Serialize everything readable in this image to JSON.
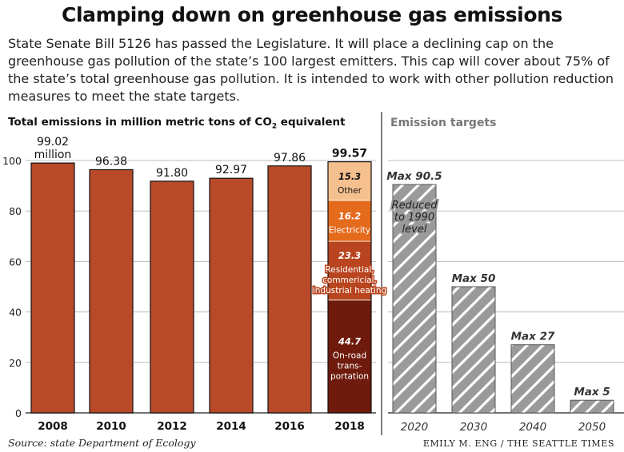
{
  "title": "Clamping down on greenhouse gas emissions",
  "intro": "State Senate Bill 5126 has passed the Legislature. It will place a declining cap on the greenhouse gas pollution of the state’s 100 largest emitters. This cap will cover about 75% of the state’s total greenhouse gas pollution. It is intended to work with other pollution reduction measures to meet the state targets.",
  "source": "Source: state Department of Ecology",
  "credit": "EMILY M. ENG / THE SEATTLE TIMES",
  "colors": {
    "bar": "#b84a2a",
    "other": "#f6c08e",
    "electricity": "#e46a1c",
    "heating": "#b8451f",
    "transportation": "#6e1a0c",
    "target": "#9a9a9a"
  },
  "chart_data": [
    {
      "type": "bar",
      "title": "Total emissions in million metric tons of CO",
      "title_subscript": "2",
      "title_suffix": " equivalent",
      "categories": [
        "2008",
        "2010",
        "2012",
        "2014",
        "2016",
        "2018"
      ],
      "values": [
        99.02,
        96.38,
        91.8,
        92.97,
        97.86,
        99.57
      ],
      "value_labels": [
        "99.02",
        "96.38",
        "91.80",
        "92.97",
        "97.86",
        "99.57"
      ],
      "first_label_unit": "million",
      "yticks": [
        0,
        20,
        40,
        60,
        80,
        100
      ],
      "ylim": [
        0,
        103
      ],
      "grid": true,
      "stacked_2018": [
        {
          "name": "On-road transportation",
          "label_lines": [
            "On-road",
            "trans-",
            "portation"
          ],
          "value": 44.7,
          "value_label": "44.7",
          "color_key": "transportation"
        },
        {
          "name": "Residential, commericial, industrial heating",
          "label_lines": [
            "Residential,",
            "commericial,",
            "industrial heating"
          ],
          "value": 23.3,
          "value_label": "23.3",
          "color_key": "heating"
        },
        {
          "name": "Electricity",
          "label_lines": [
            "Electricity"
          ],
          "value": 16.2,
          "value_label": "16.2",
          "color_key": "electricity"
        },
        {
          "name": "Other",
          "label_lines": [
            "Other"
          ],
          "value": 15.3,
          "value_label": "15.3",
          "color_key": "other"
        }
      ]
    },
    {
      "type": "bar",
      "title": "Emission targets",
      "categories": [
        "2020",
        "2030",
        "2040",
        "2050"
      ],
      "values": [
        90.5,
        50,
        27,
        5
      ],
      "value_labels": [
        "Max 90.5",
        "Max 50",
        "Max 27",
        "Max 5"
      ],
      "annotation_lines": [
        "Reduced",
        "to 1990",
        "level"
      ],
      "ylim": [
        0,
        103
      ],
      "grid": true,
      "pattern": "hatched"
    }
  ]
}
